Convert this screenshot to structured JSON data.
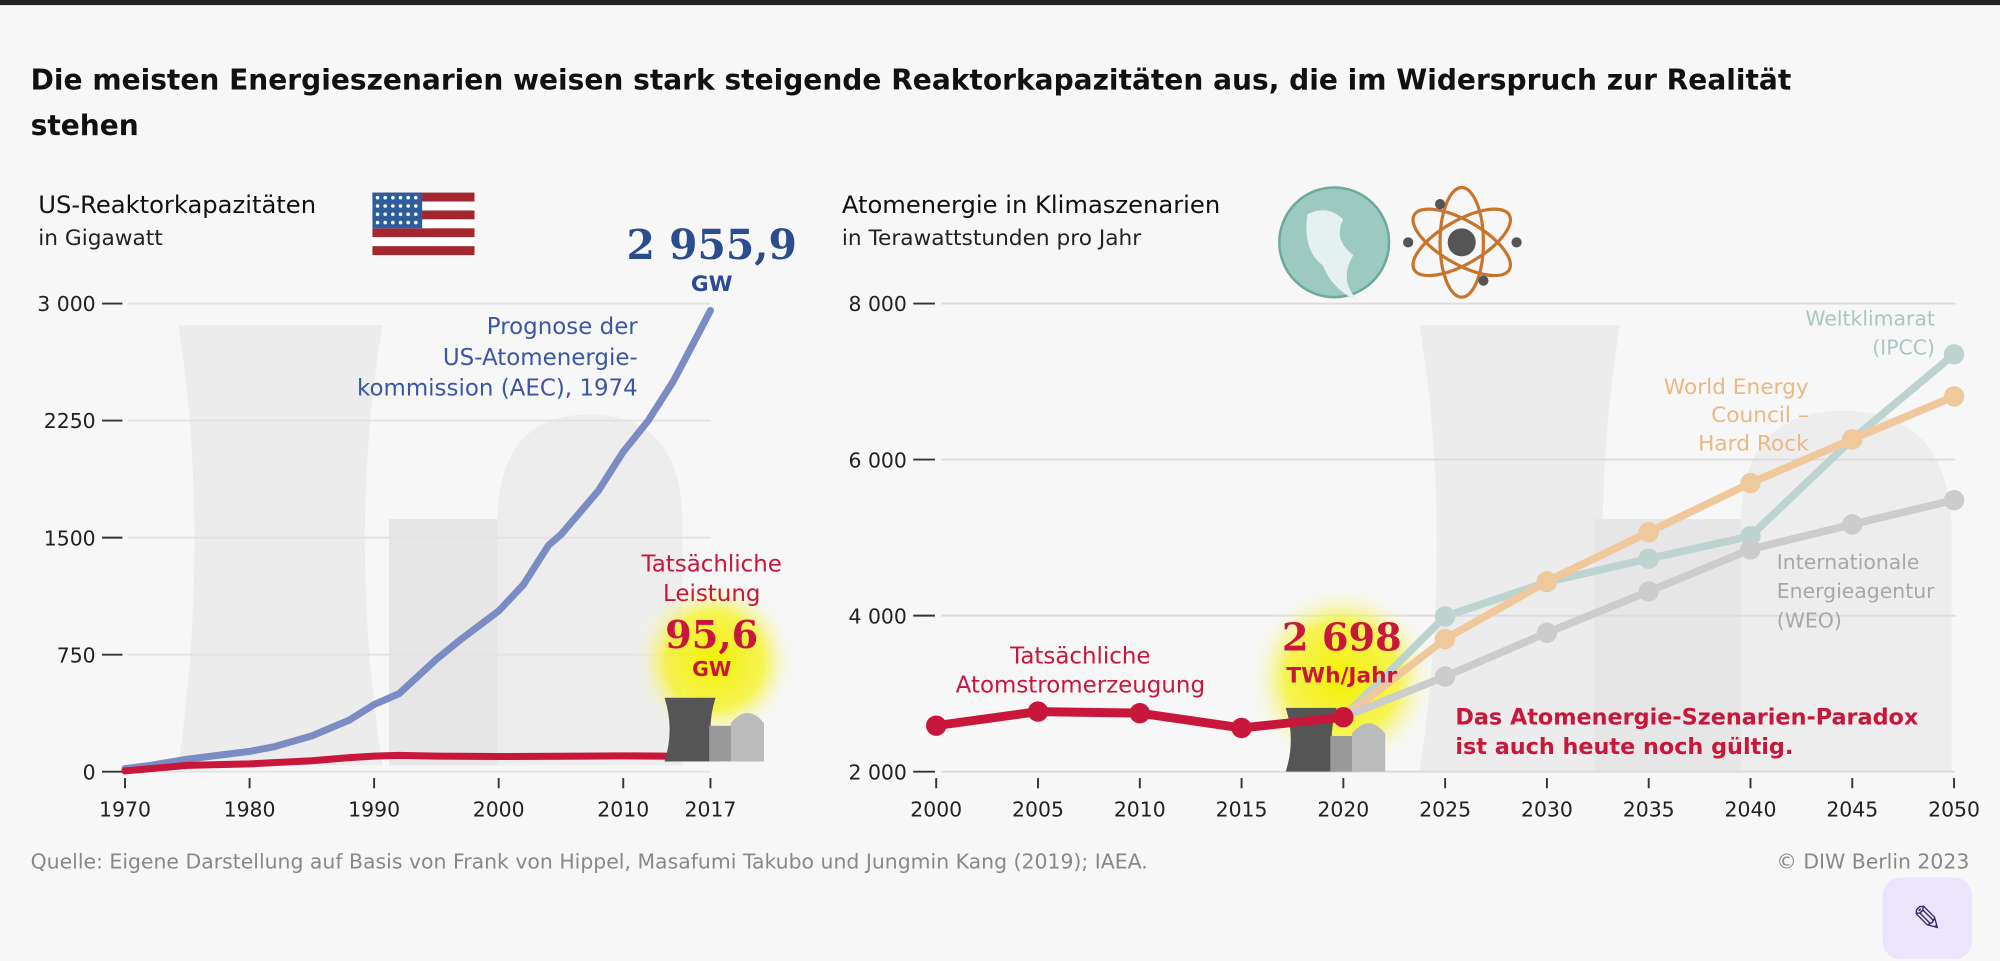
{
  "title": "Die meisten Energieszenarien weisen stark steigende Reaktorkapazitäten aus, die im Widerspruch zur Realität stehen",
  "source": "Quelle: Eigene Darstellung auf Basis von Frank von Hippel, Masafumi Takubo und Jungmin Kang (2019); IAEA.",
  "copyright": "© DIW Berlin 2023",
  "chart_data": [
    {
      "type": "line",
      "title": "US-Reaktorkapazitäten",
      "subtitle": "in Gigawatt",
      "ylim": [
        0,
        3000
      ],
      "xlim": [
        1970,
        2017
      ],
      "yticks": [
        0,
        750,
        1500,
        2250,
        3000
      ],
      "ytick_labels": [
        "0",
        "750",
        "1500",
        "2250",
        "3 000"
      ],
      "xticks": [
        1970,
        1980,
        1990,
        2000,
        2010,
        2017
      ],
      "series": [
        {
          "name": "Prognose der US-Atomenergie-kommission (AEC), 1974",
          "label_lines": [
            "Prognose der",
            "US-Atomenergie-",
            "kommission (AEC), 1974"
          ],
          "color": "#7b8bc4",
          "x": [
            1970,
            1972,
            1975,
            1978,
            1980,
            1982,
            1985,
            1988,
            1990,
            1992,
            1995,
            1997,
            2000,
            2002,
            2004,
            2005,
            2008,
            2010,
            2012,
            2014,
            2015,
            2017
          ],
          "y": [
            20,
            40,
            80,
            110,
            130,
            160,
            230,
            330,
            430,
            500,
            720,
            850,
            1030,
            1200,
            1450,
            1520,
            1800,
            2050,
            2250,
            2500,
            2650,
            2955.9
          ]
        },
        {
          "name": "Tatsächliche Leistung",
          "label_lines": [
            "Tatsächliche",
            "Leistung"
          ],
          "color": "#c8173a",
          "x": [
            1970,
            1975,
            1980,
            1985,
            1988,
            1990,
            1992,
            1995,
            2000,
            2005,
            2010,
            2015,
            2017
          ],
          "y": [
            5,
            40,
            50,
            70,
            90,
            100,
            105,
            100,
            97,
            99,
            101,
            99,
            95.6
          ]
        }
      ],
      "annotations": [
        {
          "value": "2 955,9",
          "unit": "GW"
        },
        {
          "value": "95,6",
          "unit": "GW"
        }
      ]
    },
    {
      "type": "line",
      "title": "Atomenergie in Klimaszenarien",
      "subtitle": "in Terawattstunden pro Jahr",
      "ylim": [
        2000,
        8000
      ],
      "xlim": [
        2000,
        2050
      ],
      "yticks": [
        2000,
        4000,
        6000,
        8000
      ],
      "ytick_labels": [
        "2 000",
        "4 000",
        "6 000",
        "8 000"
      ],
      "xticks": [
        2000,
        2005,
        2010,
        2015,
        2020,
        2025,
        2030,
        2035,
        2040,
        2045,
        2050
      ],
      "series": [
        {
          "name": "Weltklimarat (IPCC)",
          "label_lines": [
            "Weltklimarat",
            "(IPCC)"
          ],
          "color": "#bcd3d0",
          "x": [
            2020,
            2025,
            2030,
            2035,
            2040,
            2045,
            2050
          ],
          "y": [
            2698,
            3990,
            4430,
            4730,
            5020,
            6260,
            7350
          ]
        },
        {
          "name": "World Energy Council – Hard Rock",
          "label_lines": [
            "World Energy",
            "Council –",
            "Hard Rock"
          ],
          "color": "#efc99c",
          "x": [
            2020,
            2025,
            2030,
            2035,
            2040,
            2045,
            2050
          ],
          "y": [
            2698,
            3700,
            4440,
            5070,
            5700,
            6260,
            6810
          ]
        },
        {
          "name": "Internationale Energieagentur (WEO)",
          "label_lines": [
            "Internationale",
            "Energieagentur",
            "(WEO)"
          ],
          "color": "#cccccc",
          "x": [
            2020,
            2025,
            2030,
            2035,
            2040,
            2045,
            2050
          ],
          "y": [
            2698,
            3220,
            3780,
            4310,
            4850,
            5170,
            5480
          ]
        },
        {
          "name": "Tatsächliche Atomstromerzeugung",
          "label_lines": [
            "Tatsächliche",
            "Atomstromerzeugung"
          ],
          "color": "#c8173a",
          "x": [
            2000,
            2005,
            2010,
            2015,
            2020
          ],
          "y": [
            2590,
            2770,
            2750,
            2560,
            2698
          ]
        }
      ],
      "annotations": [
        {
          "value": "2 698",
          "unit": "TWh/Jahr"
        },
        {
          "lines": [
            "Das Atomenergie-Szenarien-Paradox",
            "ist auch heute noch gültig."
          ]
        }
      ]
    }
  ]
}
